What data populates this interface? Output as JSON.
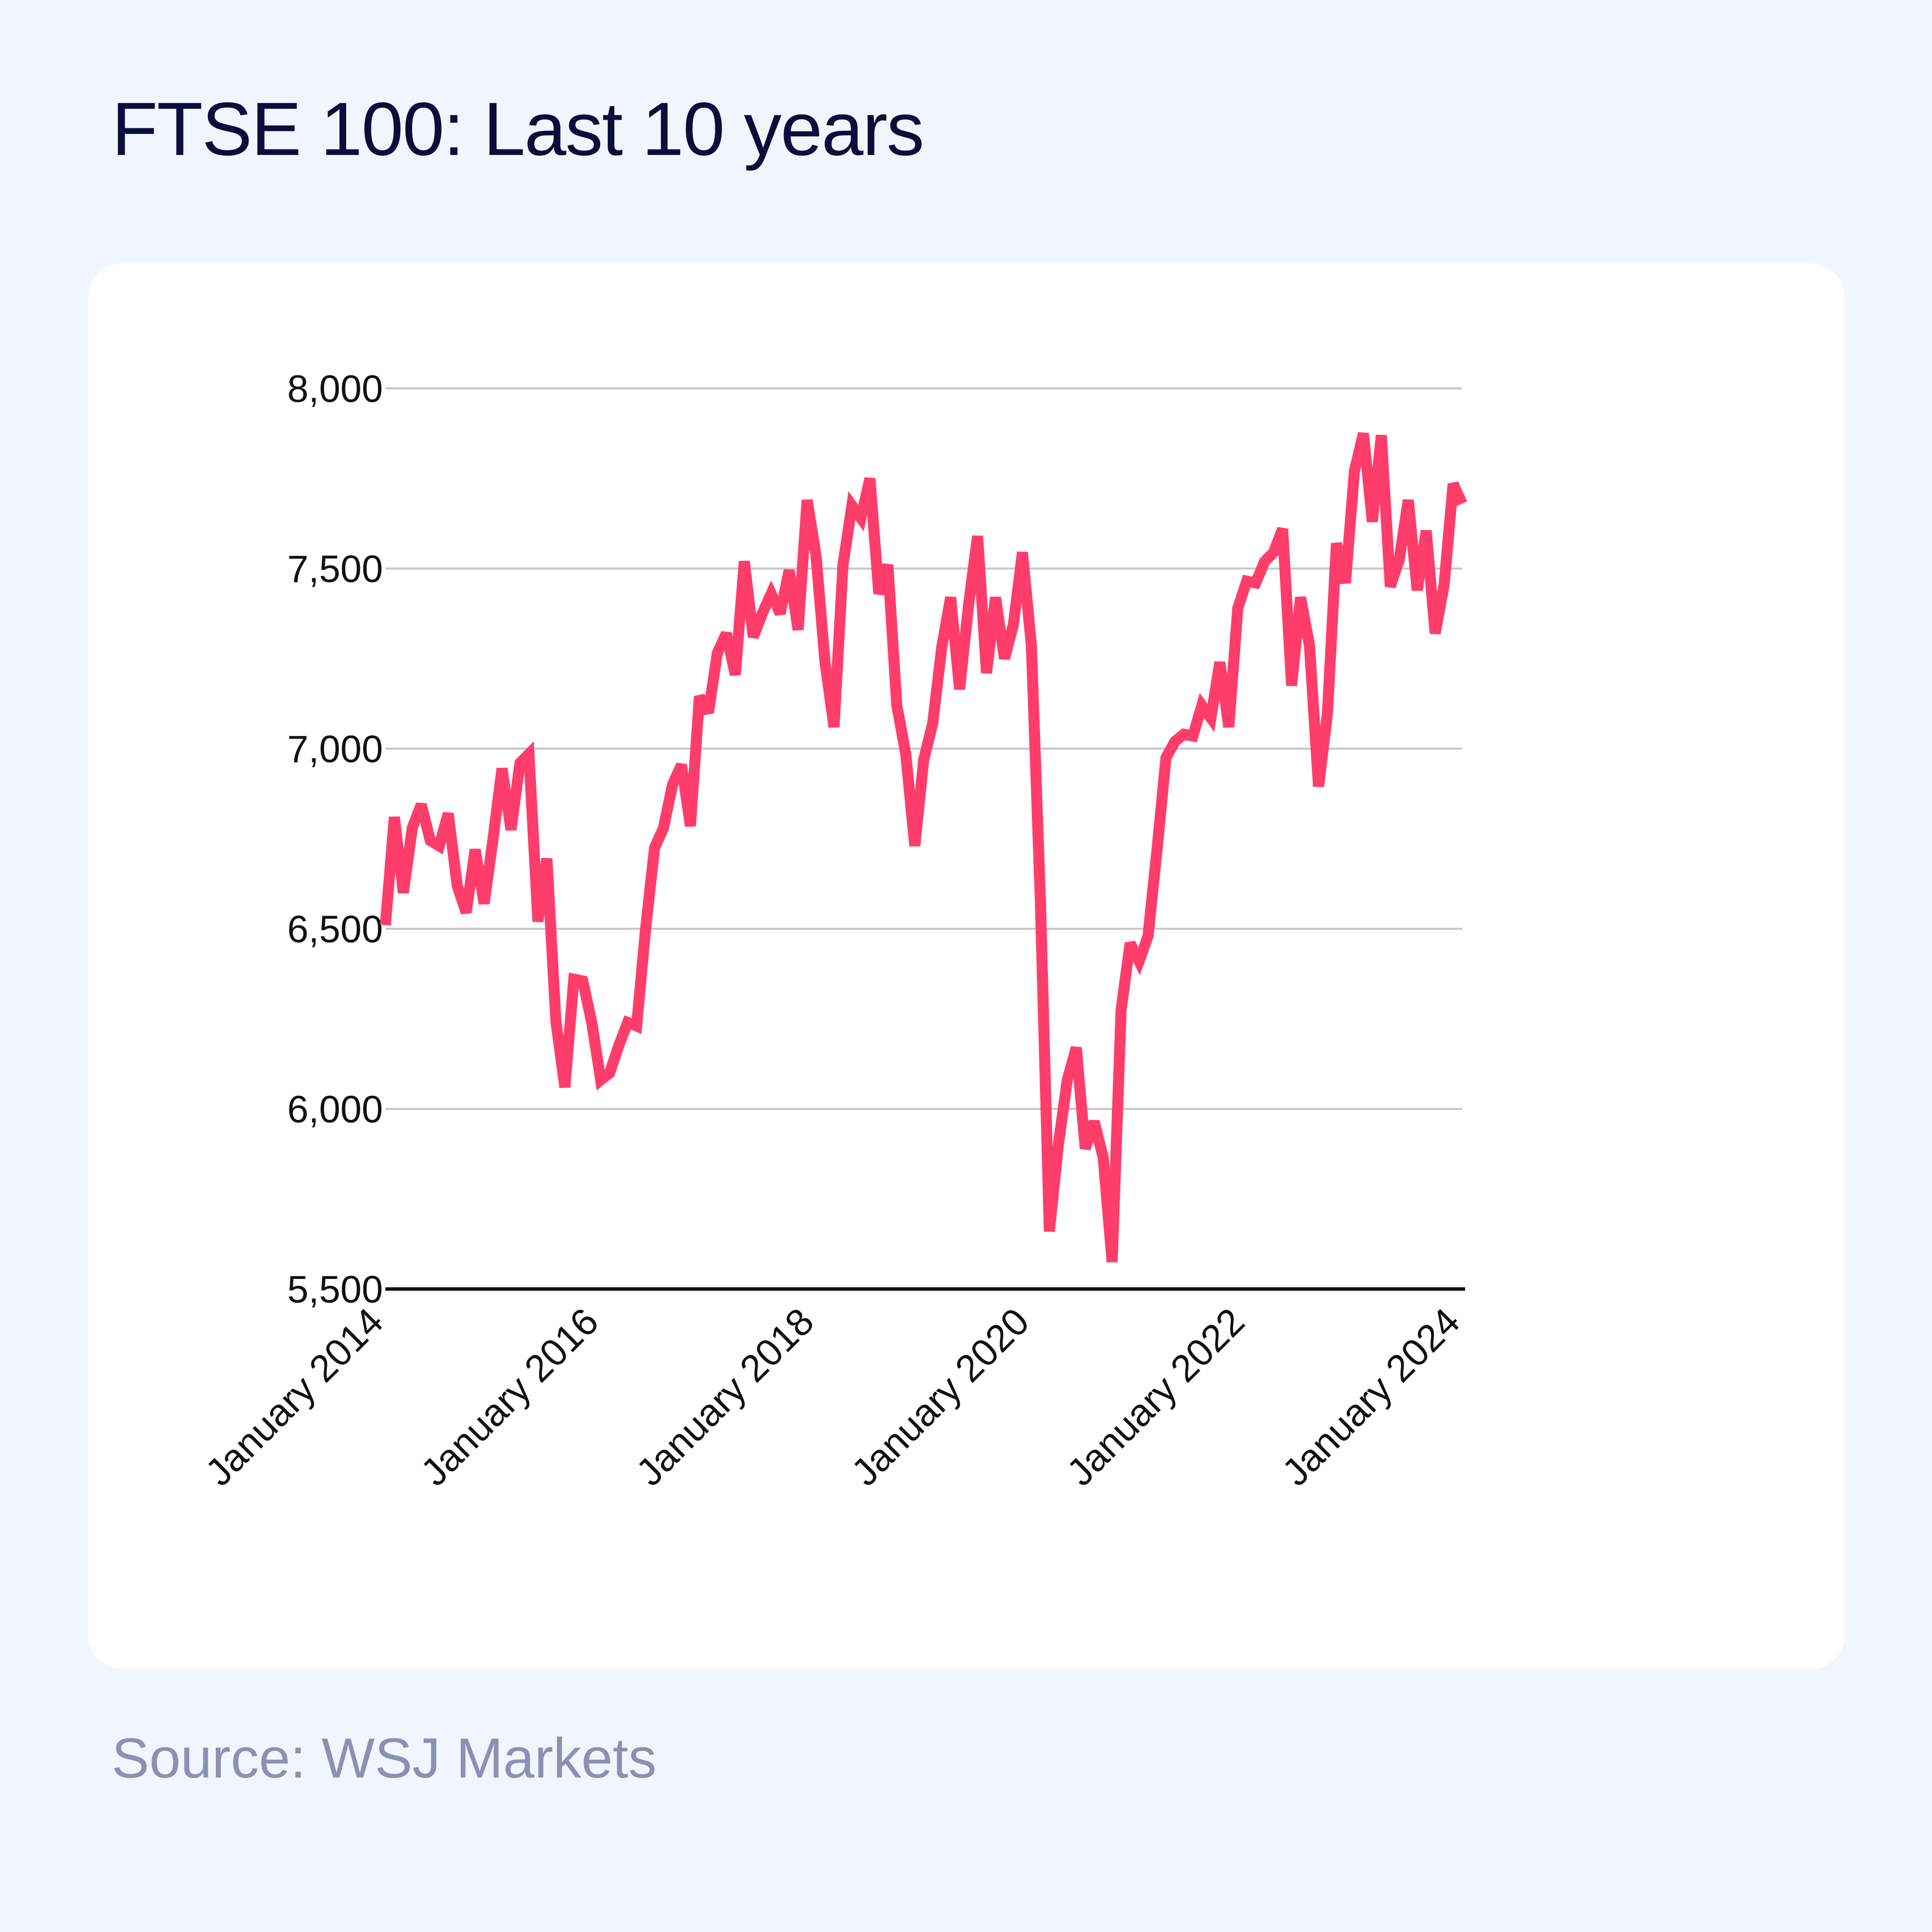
{
  "title": "FTSE 100: Last 10 years",
  "source": "Source: WSJ Markets",
  "colors": {
    "background": "#f1f5fe",
    "card": "#ffffff",
    "line": "#ff3d6a",
    "grid": "#c7c7c7",
    "axis": "#111111",
    "title": "#0b0d3a",
    "source": "#8b91b2"
  },
  "chart_data": {
    "type": "line",
    "title": "FTSE 100: Last 10 years",
    "xlabel": "",
    "ylabel": "",
    "ylim": [
      5500,
      8000
    ],
    "xlim": [
      "2014-01",
      "2024-01"
    ],
    "y_ticks": [
      5500,
      6000,
      6500,
      7000,
      7500,
      8000
    ],
    "y_tick_labels": [
      "5,500",
      "6,000",
      "6,500",
      "7,000",
      "7,500",
      "8,000"
    ],
    "x_ticks": [
      "2014-01",
      "2016-01",
      "2018-01",
      "2020-01",
      "2022-01",
      "2024-01"
    ],
    "x_tick_labels": [
      "January 2014",
      "January 2016",
      "January 2018",
      "January 2020",
      "January 2022",
      "January 2024"
    ],
    "grid": true,
    "legend": "none",
    "series": [
      {
        "x": [
          "2014-01",
          "2014-02",
          "2014-03",
          "2014-04",
          "2014-05",
          "2014-06",
          "2014-07",
          "2014-08",
          "2014-09",
          "2014-10",
          "2014-11",
          "2014-12",
          "2015-01",
          "2015-02",
          "2015-03",
          "2015-04",
          "2015-05",
          "2015-06",
          "2015-07",
          "2015-08",
          "2015-09",
          "2015-10",
          "2015-11",
          "2015-12",
          "2016-01",
          "2016-02",
          "2016-03",
          "2016-04",
          "2016-05",
          "2016-06",
          "2016-07",
          "2016-08",
          "2016-09",
          "2016-10",
          "2016-11",
          "2016-12",
          "2017-01",
          "2017-02",
          "2017-03",
          "2017-04",
          "2017-05",
          "2017-06",
          "2017-07",
          "2017-08",
          "2017-09",
          "2017-10",
          "2017-11",
          "2017-12",
          "2018-01",
          "2018-02",
          "2018-03",
          "2018-04",
          "2018-05",
          "2018-06",
          "2018-07",
          "2018-08",
          "2018-09",
          "2018-10",
          "2018-11",
          "2018-12",
          "2019-01",
          "2019-02",
          "2019-03",
          "2019-04",
          "2019-05",
          "2019-06",
          "2019-07",
          "2019-08",
          "2019-09",
          "2019-10",
          "2019-11",
          "2019-12",
          "2020-01",
          "2020-02",
          "2020-03",
          "2020-04",
          "2020-05",
          "2020-06",
          "2020-07",
          "2020-08",
          "2020-09",
          "2020-10",
          "2020-11",
          "2020-12",
          "2021-01",
          "2021-02",
          "2021-03",
          "2021-04",
          "2021-05",
          "2021-06",
          "2021-07",
          "2021-08",
          "2021-09",
          "2021-10",
          "2021-11",
          "2021-12",
          "2022-01",
          "2022-02",
          "2022-03",
          "2022-04",
          "2022-05",
          "2022-06",
          "2022-07",
          "2022-08",
          "2022-09",
          "2022-10",
          "2022-11",
          "2022-12",
          "2023-01",
          "2023-02",
          "2023-03",
          "2023-04",
          "2023-05",
          "2023-06",
          "2023-07",
          "2023-08",
          "2023-09",
          "2023-10",
          "2023-11",
          "2023-12",
          "2024-01"
        ],
        "y": [
          6510,
          6810,
          6600,
          6780,
          6845,
          6745,
          6730,
          6820,
          6620,
          6545,
          6720,
          6570,
          6750,
          6945,
          6775,
          6960,
          6985,
          6520,
          6695,
          6245,
          6060,
          6360,
          6355,
          6240,
          6080,
          6100,
          6175,
          6240,
          6230,
          6500,
          6725,
          6780,
          6900,
          6955,
          6785,
          7145,
          7100,
          7265,
          7320,
          7205,
          7520,
          7310,
          7375,
          7430,
          7375,
          7495,
          7330,
          7690,
          7535,
          7240,
          7060,
          7510,
          7675,
          7640,
          7750,
          7430,
          7510,
          7120,
          6985,
          6730,
          6970,
          7070,
          7280,
          7420,
          7165,
          7400,
          7590,
          7210,
          7420,
          7250,
          7345,
          7545,
          7285,
          6580,
          5660,
          5900,
          6080,
          6170,
          5890,
          5965,
          5865,
          5575,
          6275,
          6460,
          6410,
          6480,
          6720,
          6975,
          7020,
          7040,
          7035,
          7120,
          7085,
          7240,
          7060,
          7390,
          7465,
          7460,
          7520,
          7545,
          7610,
          7175,
          7420,
          7285,
          6895,
          7100,
          7570,
          7460,
          7770,
          7875,
          7630,
          7870,
          7450,
          7525,
          7690,
          7440,
          7605,
          7320,
          7455,
          7735,
          7680
        ]
      }
    ]
  }
}
